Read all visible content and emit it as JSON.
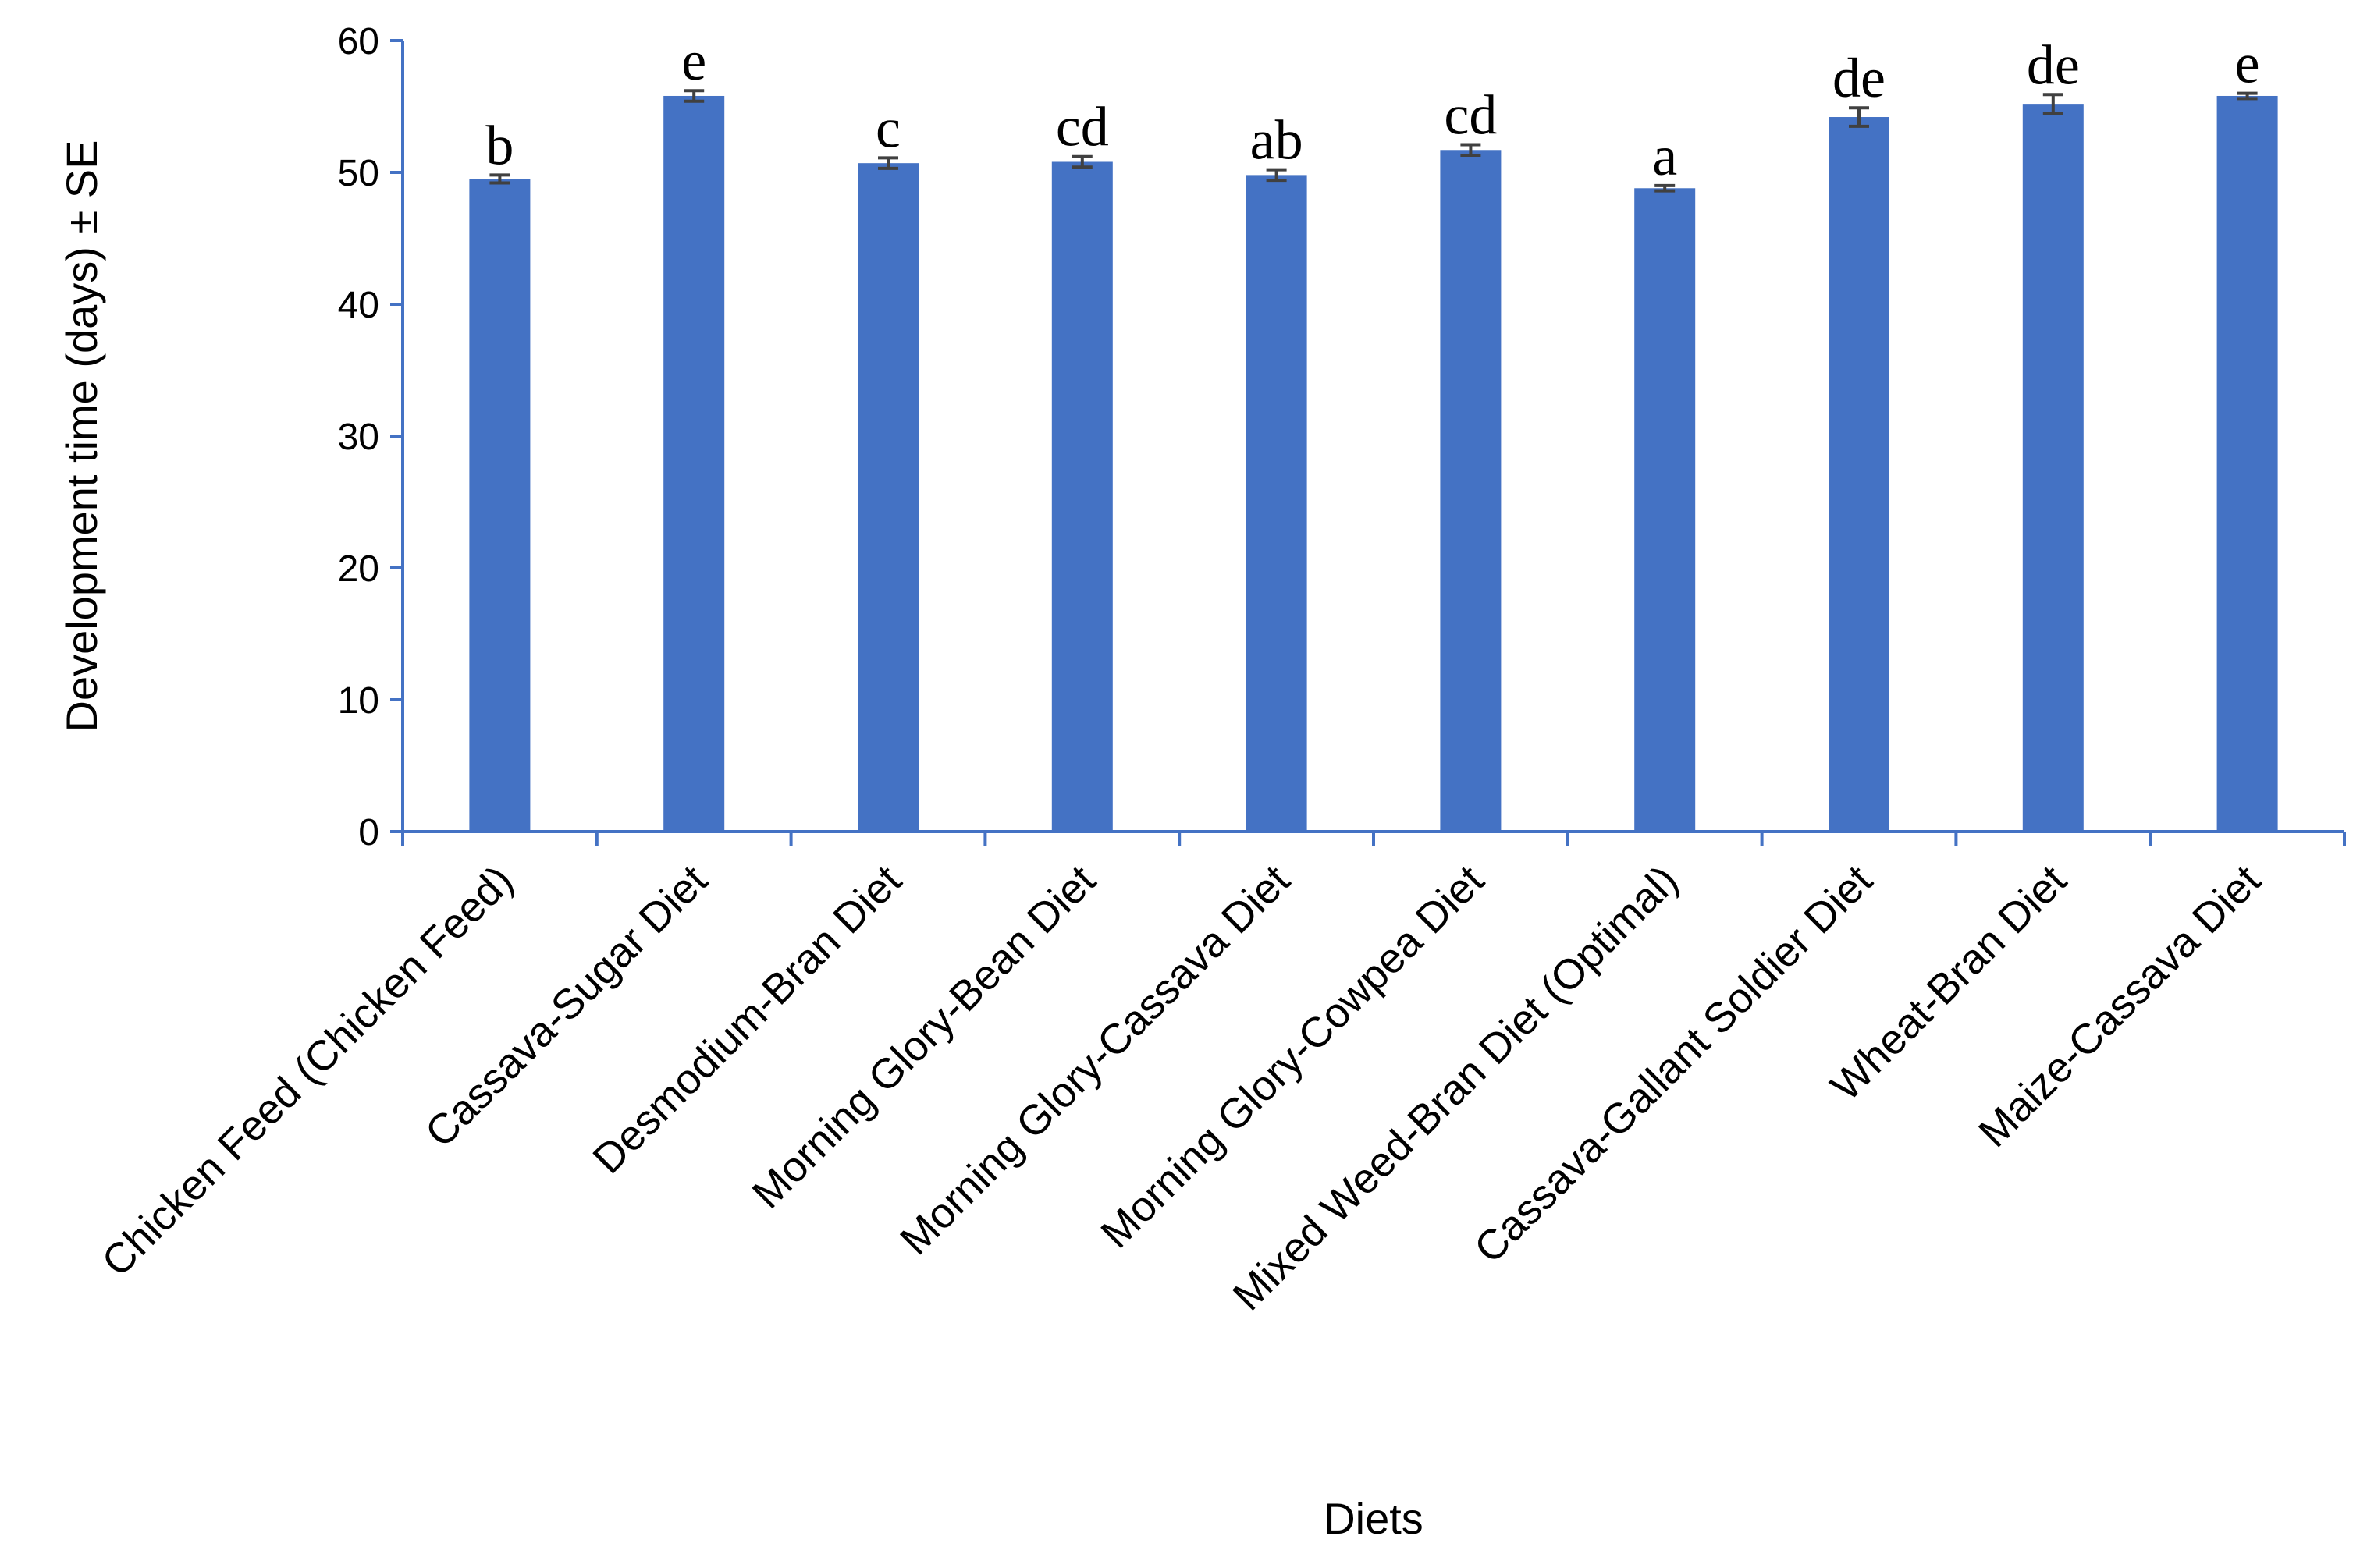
{
  "chart_data": {
    "type": "bar",
    "title": "",
    "xlabel": "Diets",
    "ylabel": "Development time (days) ± SE",
    "ylim": [
      0,
      60
    ],
    "yticks": [
      "0",
      "10",
      "20",
      "30",
      "40",
      "50",
      "60"
    ],
    "grid": false,
    "legend": "none",
    "bar_color": "#4472C4",
    "categories": [
      "Chicken Feed (Chicken Feed)",
      "Cassava-Sugar  Diet",
      "Desmodium-Bran Diet",
      "Morning Glory-Bean Diet",
      "Morning Glory-Cassava Diet",
      "Morning Glory-Cowpea Diet",
      "Mixed Weed-Bran Diet (Optimal)",
      "Cassava-Gallant Soldier  Diet",
      "Wheat-Bran Diet",
      "Maize-Cassava Diet"
    ],
    "values": [
      49.5,
      55.8,
      50.7,
      50.8,
      49.8,
      51.7,
      48.8,
      54.2,
      55.2,
      55.8
    ],
    "errors": [
      0.3,
      0.4,
      0.4,
      0.4,
      0.4,
      0.4,
      0.2,
      0.7,
      0.7,
      0.2
    ],
    "significance_labels": [
      "b",
      "e",
      "c",
      "cd",
      "ab",
      "cd",
      "a",
      "de",
      "de",
      "e"
    ]
  }
}
